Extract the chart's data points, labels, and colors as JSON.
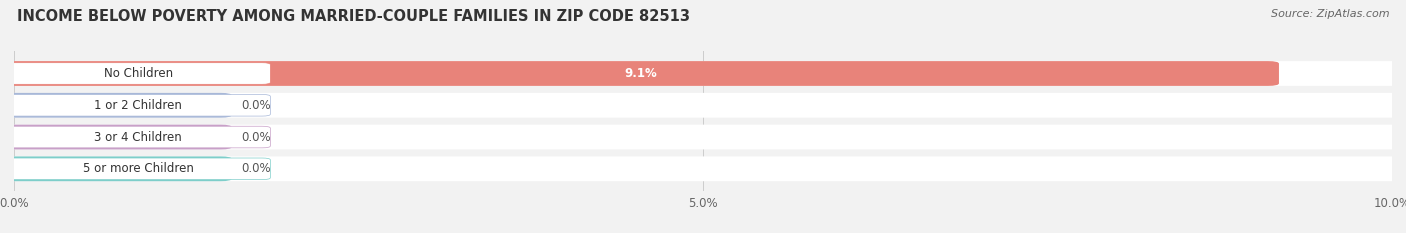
{
  "title": "INCOME BELOW POVERTY AMONG MARRIED-COUPLE FAMILIES IN ZIP CODE 82513",
  "source": "Source: ZipAtlas.com",
  "categories": [
    "No Children",
    "1 or 2 Children",
    "3 or 4 Children",
    "5 or more Children"
  ],
  "values": [
    9.1,
    0.0,
    0.0,
    0.0
  ],
  "bar_colors": [
    "#E8837A",
    "#A8B8D8",
    "#C8A0C8",
    "#7ECECA"
  ],
  "xlim": [
    0,
    10.0
  ],
  "xticks": [
    0.0,
    5.0,
    10.0
  ],
  "xtick_labels": [
    "0.0%",
    "5.0%",
    "10.0%"
  ],
  "title_fontsize": 10.5,
  "source_fontsize": 8,
  "bar_label_fontsize": 8.5,
  "category_fontsize": 8.5,
  "background_color": "#f2f2f2",
  "bar_background_color": "#e8e8e8",
  "bar_height": 0.62,
  "value_labels": [
    "9.1%",
    "0.0%",
    "0.0%",
    "0.0%"
  ],
  "zero_bar_width": 1.5
}
